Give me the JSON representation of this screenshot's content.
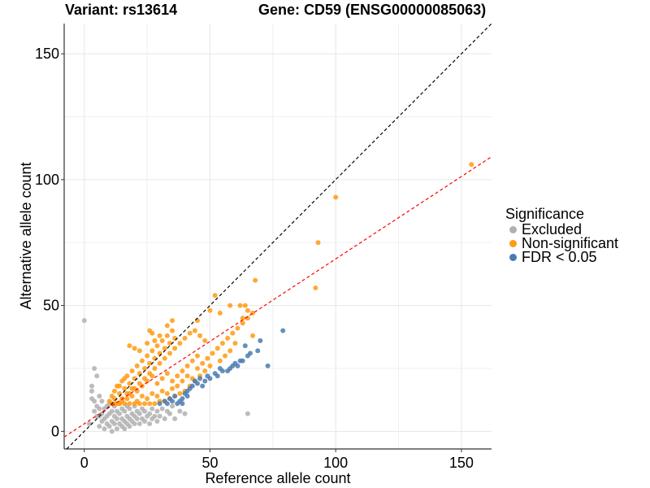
{
  "titles": {
    "variant": "Variant: rs13614",
    "gene": "Gene: CD59 (ENSG00000085063)"
  },
  "legend": {
    "title": "Significance",
    "items": [
      {
        "label": "Excluded",
        "color": "#b0b0b0"
      },
      {
        "label": "Non-significant",
        "color": "#ff9a12"
      },
      {
        "label": "FDR < 0.05",
        "color": "#4a7bb0"
      }
    ]
  },
  "chart_data": {
    "type": "scatter",
    "xlabel": "Reference allele count",
    "ylabel": "Alternative allele count",
    "xlim": [
      -8,
      162
    ],
    "ylim": [
      -7,
      162
    ],
    "x_ticks": [
      0,
      50,
      100,
      150
    ],
    "y_ticks": [
      0,
      50,
      100,
      150
    ],
    "grid": true,
    "legend_position": "right",
    "reference_lines": [
      {
        "name": "identity",
        "slope": 1,
        "intercept": 0,
        "color": "#000000",
        "style": "dashed"
      },
      {
        "name": "fit",
        "slope": 0.655,
        "intercept": 3,
        "color": "#ff0000",
        "style": "dashed"
      }
    ],
    "series": [
      {
        "name": "Excluded",
        "color": "#b0b0b0",
        "points": [
          [
            0,
            44
          ],
          [
            2,
            3
          ],
          [
            3,
            13
          ],
          [
            3,
            18
          ],
          [
            4,
            8
          ],
          [
            4,
            12
          ],
          [
            5,
            6
          ],
          [
            5,
            10
          ],
          [
            6,
            2
          ],
          [
            6,
            6
          ],
          [
            6,
            9
          ],
          [
            7,
            4
          ],
          [
            7,
            7
          ],
          [
            8,
            1
          ],
          [
            8,
            5
          ],
          [
            8,
            9
          ],
          [
            9,
            3
          ],
          [
            9,
            6
          ],
          [
            9,
            10
          ],
          [
            10,
            2
          ],
          [
            10,
            7
          ],
          [
            10,
            11
          ],
          [
            11,
            0
          ],
          [
            11,
            4
          ],
          [
            11,
            8
          ],
          [
            12,
            3
          ],
          [
            12,
            6
          ],
          [
            12,
            10
          ],
          [
            13,
            1
          ],
          [
            13,
            5
          ],
          [
            13,
            8
          ],
          [
            14,
            3
          ],
          [
            14,
            7
          ],
          [
            14,
            11
          ],
          [
            15,
            2
          ],
          [
            15,
            5
          ],
          [
            15,
            9
          ],
          [
            16,
            1
          ],
          [
            16,
            4
          ],
          [
            16,
            8
          ],
          [
            17,
            3
          ],
          [
            17,
            6
          ],
          [
            17,
            10
          ],
          [
            18,
            2
          ],
          [
            18,
            5
          ],
          [
            18,
            9
          ],
          [
            19,
            4
          ],
          [
            19,
            7
          ],
          [
            20,
            3
          ],
          [
            20,
            6
          ],
          [
            20,
            10
          ],
          [
            21,
            5
          ],
          [
            21,
            8
          ],
          [
            22,
            3
          ],
          [
            22,
            7
          ],
          [
            23,
            5
          ],
          [
            23,
            9
          ],
          [
            24,
            4
          ],
          [
            24,
            8
          ],
          [
            25,
            6
          ],
          [
            26,
            3
          ],
          [
            26,
            7
          ],
          [
            27,
            5
          ],
          [
            27,
            9
          ],
          [
            28,
            6
          ],
          [
            29,
            4
          ],
          [
            29,
            8
          ],
          [
            30,
            6
          ],
          [
            31,
            9
          ],
          [
            32,
            5
          ],
          [
            33,
            8
          ],
          [
            34,
            7
          ],
          [
            35,
            10
          ],
          [
            36,
            5
          ],
          [
            38,
            8
          ],
          [
            40,
            7
          ],
          [
            65,
            7
          ],
          [
            5,
            22
          ],
          [
            4,
            25
          ],
          [
            3,
            16
          ],
          [
            6,
            14
          ],
          [
            7,
            12
          ]
        ]
      },
      {
        "name": "Non-significant",
        "color": "#ff9a12",
        "points": [
          [
            10,
            12
          ],
          [
            11,
            14
          ],
          [
            12,
            16
          ],
          [
            13,
            18
          ],
          [
            14,
            15
          ],
          [
            15,
            20
          ],
          [
            16,
            17
          ],
          [
            17,
            22
          ],
          [
            18,
            19
          ],
          [
            19,
            24
          ],
          [
            20,
            21
          ],
          [
            21,
            26
          ],
          [
            22,
            23
          ],
          [
            23,
            28
          ],
          [
            24,
            25
          ],
          [
            25,
            30
          ],
          [
            26,
            27
          ],
          [
            27,
            32
          ],
          [
            28,
            29
          ],
          [
            29,
            34
          ],
          [
            30,
            31
          ],
          [
            31,
            36
          ],
          [
            32,
            33
          ],
          [
            33,
            38
          ],
          [
            34,
            35
          ],
          [
            35,
            40
          ],
          [
            36,
            37
          ],
          [
            12,
            13
          ],
          [
            14,
            18
          ],
          [
            16,
            21
          ],
          [
            18,
            15
          ],
          [
            20,
            17
          ],
          [
            22,
            19
          ],
          [
            24,
            21
          ],
          [
            26,
            23
          ],
          [
            28,
            25
          ],
          [
            30,
            27
          ],
          [
            32,
            29
          ],
          [
            34,
            31
          ],
          [
            36,
            33
          ],
          [
            38,
            35
          ],
          [
            40,
            37
          ],
          [
            42,
            39
          ],
          [
            15,
            13
          ],
          [
            17,
            15
          ],
          [
            19,
            17
          ],
          [
            21,
            16
          ],
          [
            23,
            18
          ],
          [
            25,
            20
          ],
          [
            27,
            22
          ],
          [
            29,
            19
          ],
          [
            31,
            21
          ],
          [
            33,
            23
          ],
          [
            35,
            20
          ],
          [
            37,
            22
          ],
          [
            39,
            24
          ],
          [
            41,
            26
          ],
          [
            43,
            28
          ],
          [
            45,
            30
          ],
          [
            13,
            11
          ],
          [
            15,
            12
          ],
          [
            17,
            13
          ],
          [
            19,
            14
          ],
          [
            21,
            12
          ],
          [
            23,
            14
          ],
          [
            25,
            13
          ],
          [
            27,
            15
          ],
          [
            29,
            14
          ],
          [
            31,
            16
          ],
          [
            33,
            15
          ],
          [
            35,
            17
          ],
          [
            37,
            18
          ],
          [
            39,
            20
          ],
          [
            41,
            22
          ],
          [
            43,
            21
          ],
          [
            45,
            25
          ],
          [
            47,
            27
          ],
          [
            49,
            29
          ],
          [
            51,
            31
          ],
          [
            53,
            33
          ],
          [
            55,
            35
          ],
          [
            57,
            37
          ],
          [
            59,
            39
          ],
          [
            61,
            41
          ],
          [
            63,
            43
          ],
          [
            65,
            45
          ],
          [
            67,
            47
          ],
          [
            52,
            54
          ],
          [
            54,
            47
          ],
          [
            58,
            50
          ],
          [
            62,
            50
          ],
          [
            64,
            50
          ],
          [
            65,
            48
          ],
          [
            68,
            60
          ],
          [
            63,
            45
          ],
          [
            67,
            38
          ],
          [
            60,
            35
          ],
          [
            58,
            32
          ],
          [
            56,
            30
          ],
          [
            54,
            28
          ],
          [
            50,
            26
          ],
          [
            48,
            24
          ],
          [
            46,
            22
          ],
          [
            44,
            20
          ],
          [
            42,
            18
          ],
          [
            40,
            16
          ],
          [
            38,
            15
          ],
          [
            36,
            14
          ],
          [
            34,
            13
          ],
          [
            32,
            12
          ],
          [
            30,
            12
          ],
          [
            28,
            11
          ],
          [
            26,
            11
          ],
          [
            24,
            11
          ],
          [
            22,
            11
          ],
          [
            20,
            11
          ],
          [
            18,
            11
          ],
          [
            16,
            11
          ],
          [
            14,
            11
          ],
          [
            12,
            11
          ],
          [
            11,
            11
          ],
          [
            50,
            48
          ],
          [
            45,
            44
          ],
          [
            44,
            40
          ],
          [
            46,
            38
          ],
          [
            48,
            36
          ],
          [
            25,
            35
          ],
          [
            22,
            32
          ],
          [
            20,
            33
          ],
          [
            18,
            34
          ],
          [
            30,
            38
          ],
          [
            28,
            36
          ],
          [
            27,
            39
          ],
          [
            26,
            40
          ],
          [
            33,
            42
          ],
          [
            35,
            44
          ],
          [
            92,
            57
          ],
          [
            93,
            75
          ],
          [
            100,
            93
          ],
          [
            154,
            106
          ]
        ]
      },
      {
        "name": "FDR < 0.05",
        "color": "#4a7bb0",
        "points": [
          [
            30,
            11
          ],
          [
            32,
            12
          ],
          [
            34,
            13
          ],
          [
            33,
            11
          ],
          [
            35,
            12
          ],
          [
            36,
            14
          ],
          [
            37,
            11
          ],
          [
            38,
            12
          ],
          [
            39,
            13
          ],
          [
            40,
            15
          ],
          [
            41,
            16
          ],
          [
            42,
            17
          ],
          [
            43,
            18
          ],
          [
            44,
            20
          ],
          [
            45,
            19
          ],
          [
            46,
            21
          ],
          [
            47,
            18
          ],
          [
            48,
            20
          ],
          [
            49,
            22
          ],
          [
            50,
            21
          ],
          [
            52,
            23
          ],
          [
            53,
            22
          ],
          [
            54,
            25
          ],
          [
            55,
            24
          ],
          [
            57,
            24
          ],
          [
            58,
            25
          ],
          [
            59,
            26
          ],
          [
            60,
            27
          ],
          [
            61,
            26
          ],
          [
            62,
            28
          ],
          [
            63,
            28
          ],
          [
            64,
            34
          ],
          [
            65,
            30
          ],
          [
            66,
            31
          ],
          [
            69,
            32
          ],
          [
            70,
            36
          ],
          [
            73,
            26
          ],
          [
            79,
            40
          ],
          [
            41,
            14
          ],
          [
            39,
            11
          ]
        ]
      }
    ]
  }
}
